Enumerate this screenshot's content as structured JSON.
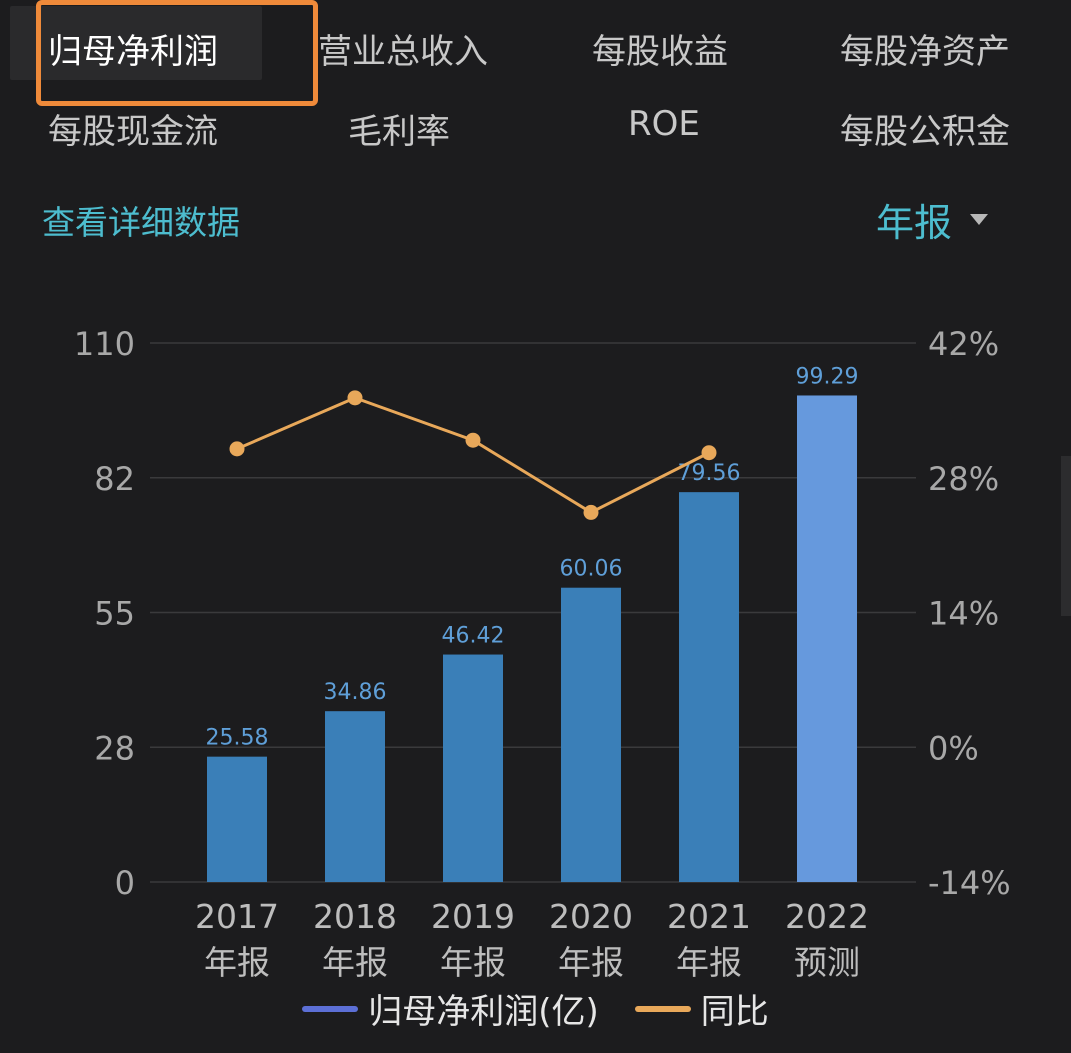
{
  "tabs": [
    {
      "label": "归母净利润",
      "active": true
    },
    {
      "label": "营业总收入"
    },
    {
      "label": "每股收益"
    },
    {
      "label": "每股净资产"
    },
    {
      "label": "每股现金流"
    },
    {
      "label": "毛利率"
    },
    {
      "label": "ROE"
    },
    {
      "label": "每股公积金"
    }
  ],
  "detail_link": "查看详细数据",
  "period_select": {
    "value": "年报",
    "icon": "caret-down-icon"
  },
  "colors": {
    "bar": "#3a7fb8",
    "bar_forecast": "#6699dd",
    "line": "#e8a85a",
    "label": "#5f9fd8",
    "highlight": "#ef8a3a",
    "legend_profit": "#5c6fd6",
    "accent": "#4dbdcf"
  },
  "chart_data": {
    "type": "bar",
    "categories": [
      "2017\n年报",
      "2018\n年报",
      "2019\n年报",
      "2020\n年报",
      "2021\n年报",
      "2022\n预测"
    ],
    "category_lines": [
      [
        "2017",
        "年报"
      ],
      [
        "2018",
        "年报"
      ],
      [
        "2019",
        "年报"
      ],
      [
        "2020",
        "年报"
      ],
      [
        "2021",
        "年报"
      ],
      [
        "2022",
        "预测"
      ]
    ],
    "series": [
      {
        "name": "归母净利润(亿)",
        "type": "bar",
        "axis": "left",
        "values": [
          25.58,
          34.86,
          46.42,
          60.06,
          79.56,
          99.29
        ],
        "labels": [
          "25.58",
          "34.86",
          "46.42",
          "60.06",
          "79.56",
          "99.29"
        ],
        "forecast_index": 5
      },
      {
        "name": "同比",
        "type": "line",
        "axis": "right",
        "values": [
          31.0,
          36.3,
          31.9,
          24.4,
          30.6,
          null
        ]
      }
    ],
    "y_left": {
      "ticks": [
        "110",
        "82",
        "55",
        "28",
        "0"
      ],
      "range": [
        0,
        110
      ]
    },
    "y_right": {
      "ticks": [
        "42%",
        "28%",
        "14%",
        "0%",
        "-14%"
      ],
      "range": [
        -14,
        42
      ]
    },
    "grid": true,
    "legend_position": "bottom"
  }
}
